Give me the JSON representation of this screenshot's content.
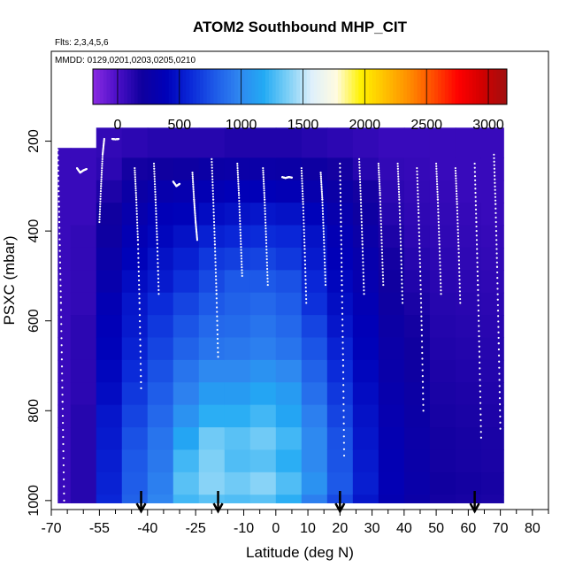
{
  "chart_data": {
    "type": "heatmap",
    "title": "ATOM2 Southbound MHP_CIT",
    "subtitle_flights": "Flts: 2,3,4,5,6",
    "subtitle_dates": "MMDD: 0129,0201,0203,0205,0210",
    "xlabel": "Latitude (deg N)",
    "ylabel": "PSXC (mbar)",
    "xlim": [
      -70,
      85
    ],
    "ylim": [
      1020,
      0
    ],
    "x_ticks": [
      -70,
      -55,
      -40,
      -25,
      -10,
      0,
      10,
      20,
      30,
      40,
      50,
      60,
      70,
      80
    ],
    "x_tick_labels": [
      "-70",
      "-55",
      "-40",
      "-25",
      "-10",
      "0",
      "10",
      "20",
      "30",
      "40",
      "50",
      "60",
      "70",
      "80"
    ],
    "x_minor_ticks": [
      -65,
      -60,
      -50,
      -45,
      -35,
      -30,
      -20,
      -15,
      -5,
      5,
      15,
      25,
      35,
      45,
      55,
      65,
      75,
      85
    ],
    "y_ticks": [
      200,
      400,
      600,
      800,
      1000
    ],
    "y_tick_labels": [
      "200",
      "400",
      "600",
      "800",
      "1000"
    ],
    "colorbar": {
      "range": [
        -200,
        3150
      ],
      "ticks": [
        0,
        500,
        1000,
        1500,
        2000,
        2500,
        3000
      ],
      "tick_labels": [
        "0",
        "500",
        "1000",
        "1500",
        "2000",
        "2500",
        "3000"
      ],
      "colors": [
        "#8a2be2",
        "#4b0fc8",
        "#10009e",
        "#0000b8",
        "#0a28d8",
        "#1e5ae8",
        "#2f86f0",
        "#22aaf4",
        "#7ccff6",
        "#dff0fb",
        "#fffbe0",
        "#fff200",
        "#ffc000",
        "#ff8c00",
        "#ff4a00",
        "#ff0000",
        "#d00000",
        "#a01010"
      ]
    },
    "heatmap": {
      "x_bins": [
        -68,
        -60,
        -52,
        -44,
        -36,
        -28,
        -20,
        -12,
        -4,
        4,
        12,
        20,
        28,
        36,
        44,
        52,
        60,
        68
      ],
      "p_bins": [
        212,
        262,
        312,
        362,
        412,
        462,
        512,
        562,
        612,
        662,
        712,
        762,
        812,
        862,
        912,
        962,
        1012
      ],
      "values": [
        [
          60,
          60,
          60,
          60,
          60,
          60,
          60,
          60,
          60,
          60,
          60,
          60,
          60,
          60,
          60,
          60,
          60
        ],
        [
          60,
          60,
          60,
          60,
          80,
          80,
          80,
          80,
          100,
          100,
          100,
          100,
          120,
          120,
          120,
          120,
          120
        ],
        [
          80,
          100,
          150,
          200,
          220,
          260,
          300,
          350,
          380,
          400,
          420,
          450,
          500,
          520,
          540,
          560,
          580
        ],
        [
          100,
          180,
          250,
          300,
          350,
          400,
          450,
          500,
          520,
          560,
          600,
          650,
          700,
          750,
          780,
          800,
          820
        ],
        [
          120,
          200,
          300,
          380,
          420,
          480,
          520,
          600,
          650,
          700,
          750,
          800,
          850,
          900,
          920,
          950,
          980
        ],
        [
          120,
          220,
          320,
          400,
          480,
          550,
          620,
          700,
          760,
          820,
          900,
          960,
          1050,
          1150,
          1250,
          1300,
          1250
        ],
        [
          120,
          250,
          350,
          450,
          550,
          650,
          720,
          780,
          850,
          900,
          1000,
          1100,
          1200,
          1350,
          1380,
          1400,
          1300
        ],
        [
          140,
          260,
          380,
          480,
          580,
          680,
          780,
          820,
          860,
          920,
          1000,
          1100,
          1200,
          1300,
          1280,
          1350,
          1280
        ],
        [
          140,
          260,
          380,
          500,
          600,
          700,
          780,
          850,
          900,
          950,
          1050,
          1150,
          1250,
          1350,
          1300,
          1400,
          1300
        ],
        [
          140,
          250,
          360,
          480,
          580,
          650,
          750,
          800,
          850,
          900,
          1000,
          1100,
          1150,
          1250,
          1200,
          1280,
          1200
        ],
        [
          120,
          220,
          300,
          400,
          480,
          520,
          580,
          620,
          700,
          760,
          820,
          880,
          950,
          1000,
          1000,
          1050,
          950
        ],
        [
          100,
          180,
          250,
          300,
          350,
          380,
          420,
          460,
          500,
          560,
          600,
          650,
          700,
          750,
          760,
          780,
          720
        ],
        [
          80,
          120,
          180,
          220,
          260,
          300,
          320,
          350,
          380,
          400,
          420,
          450,
          480,
          500,
          520,
          540,
          500
        ],
        [
          60,
          80,
          100,
          120,
          150,
          180,
          200,
          220,
          240,
          260,
          280,
          300,
          320,
          340,
          350,
          360,
          340
        ],
        [
          60,
          70,
          80,
          90,
          100,
          120,
          140,
          160,
          180,
          200,
          220,
          240,
          250,
          260,
          270,
          280,
          260
        ],
        [
          60,
          60,
          70,
          80,
          90,
          100,
          110,
          120,
          130,
          140,
          150,
          160,
          170,
          180,
          180,
          190,
          180
        ],
        [
          60,
          60,
          60,
          70,
          80,
          90,
          100,
          110,
          120,
          130,
          140,
          150,
          160,
          170,
          170,
          180,
          170
        ],
        [
          60,
          60,
          60,
          60,
          70,
          80,
          90,
          100,
          110,
          120,
          130,
          140,
          150,
          160,
          160,
          170,
          160
        ]
      ]
    },
    "data_extent": {
      "lat_min": -68,
      "lat_max": 71,
      "p_min_main": 170,
      "p_min_south": 215,
      "p_max": 1005,
      "south_edge_lat": -54
    },
    "flight_tracks": [
      {
        "lat": [
          -68,
          -67.5,
          -67,
          -66.5,
          -66
        ],
        "p": [
          220,
          380,
          560,
          780,
          1000
        ]
      },
      {
        "lat": [
          -62,
          -61,
          -60,
          -59
        ],
        "p": [
          260,
          270,
          265,
          262
        ]
      },
      {
        "lat": [
          -55,
          -54.5,
          -54,
          -53.5
        ],
        "p": [
          380,
          300,
          230,
          195
        ]
      },
      {
        "lat": [
          -51,
          -50,
          -49
        ],
        "p": [
          195,
          196,
          195
        ]
      },
      {
        "lat": [
          -44,
          -43.5,
          -43,
          -42.5,
          -42
        ],
        "p": [
          260,
          330,
          420,
          560,
          750
        ]
      },
      {
        "lat": [
          -38,
          -37.5,
          -37,
          -36.5
        ],
        "p": [
          250,
          330,
          420,
          540
        ]
      },
      {
        "lat": [
          -32,
          -31,
          -30
        ],
        "p": [
          290,
          300,
          295
        ]
      },
      {
        "lat": [
          -26,
          -25.5,
          -25,
          -24.5
        ],
        "p": [
          270,
          330,
          380,
          420
        ]
      },
      {
        "lat": [
          -20,
          -19.5,
          -19,
          -18.5,
          -18
        ],
        "p": [
          240,
          330,
          430,
          540,
          680
        ]
      },
      {
        "lat": [
          -12,
          -11.5,
          -11,
          -10.5
        ],
        "p": [
          250,
          320,
          410,
          500
        ]
      },
      {
        "lat": [
          -4,
          -3.5,
          -3,
          -2.5
        ],
        "p": [
          260,
          330,
          420,
          520
        ]
      },
      {
        "lat": [
          2,
          3,
          4,
          5
        ],
        "p": [
          280,
          282,
          280,
          281
        ]
      },
      {
        "lat": [
          8,
          8.5,
          9,
          9.5
        ],
        "p": [
          260,
          340,
          440,
          560
        ]
      },
      {
        "lat": [
          14,
          14.5,
          15,
          15.5
        ],
        "p": [
          270,
          330,
          420,
          520
        ]
      },
      {
        "lat": [
          20,
          20.3,
          20.6,
          21,
          21.3
        ],
        "p": [
          250,
          380,
          520,
          700,
          900
        ]
      },
      {
        "lat": [
          26,
          26.5,
          27,
          27.5
        ],
        "p": [
          240,
          330,
          430,
          540
        ]
      },
      {
        "lat": [
          32,
          32.5,
          33,
          33.5
        ],
        "p": [
          250,
          320,
          420,
          520
        ]
      },
      {
        "lat": [
          38,
          38.5,
          39,
          39.5
        ],
        "p": [
          250,
          330,
          440,
          560
        ]
      },
      {
        "lat": [
          44,
          44.5,
          45,
          45.5,
          46
        ],
        "p": [
          260,
          360,
          480,
          620,
          800
        ]
      },
      {
        "lat": [
          50,
          50.5,
          51,
          51.5
        ],
        "p": [
          250,
          330,
          430,
          540
        ]
      },
      {
        "lat": [
          56,
          56.5,
          57,
          57.5
        ],
        "p": [
          260,
          340,
          440,
          560
        ]
      },
      {
        "lat": [
          62,
          62.5,
          63,
          63.5,
          64
        ],
        "p": [
          250,
          380,
          520,
          680,
          860
        ]
      },
      {
        "lat": [
          68,
          68.5,
          69,
          69.5,
          70
        ],
        "p": [
          230,
          340,
          480,
          650,
          840
        ]
      }
    ],
    "arrows_lat": [
      -42,
      -18,
      20,
      62
    ]
  }
}
